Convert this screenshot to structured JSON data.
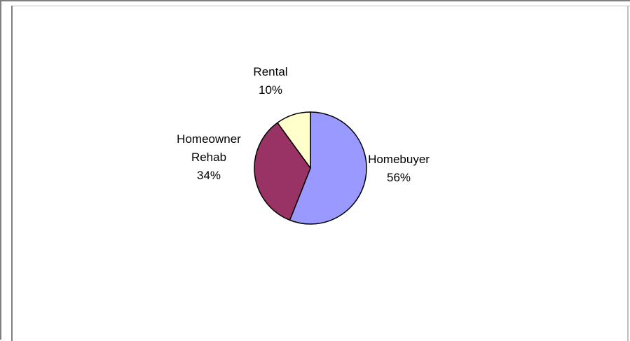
{
  "chart_data": {
    "type": "pie",
    "title": "",
    "categories": [
      "Homebuyer",
      "Homeowner Rehab",
      "Rental"
    ],
    "values": [
      56,
      34,
      10
    ],
    "value_labels": [
      "56%",
      "34%",
      "10%"
    ],
    "label_lines": [
      [
        "Homebuyer",
        "56%"
      ],
      [
        "Homeowner",
        "Rehab",
        "34%"
      ],
      [
        "Rental",
        "10%"
      ]
    ],
    "colors": [
      "#9999ff",
      "#993366",
      "#ffffcc"
    ],
    "slice_outline_color": "#000000",
    "legend": "none",
    "start_angle_deg": 0,
    "direction": "clockwise"
  }
}
